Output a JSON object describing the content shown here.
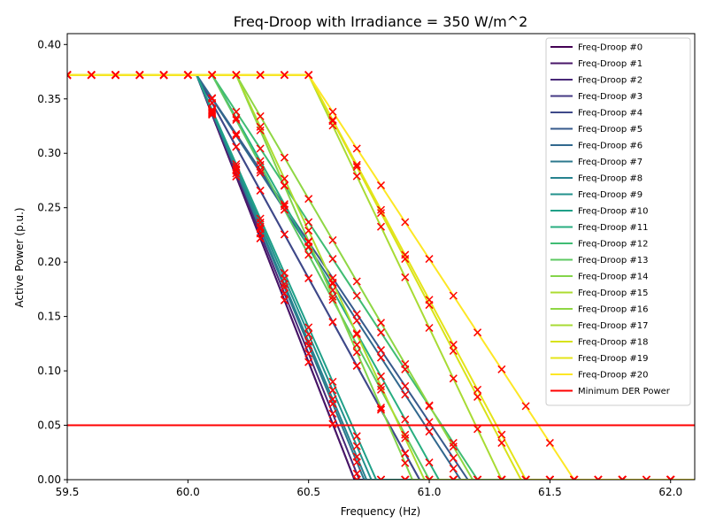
{
  "chart_data": {
    "type": "line",
    "title": "Freq-Droop with Irradiance = 350 W/m^2",
    "xlabel": "Frequency (Hz)",
    "ylabel": "Active Power (p.u.)",
    "xlim": [
      59.5,
      62.1
    ],
    "ylim": [
      0.0,
      0.41
    ],
    "xticks": [
      59.5,
      60.0,
      60.5,
      61.0,
      61.5,
      62.0
    ],
    "xtick_labels": [
      "59.5",
      "60.0",
      "60.5",
      "61.0",
      "61.5",
      "62.0"
    ],
    "yticks": [
      0.0,
      0.05,
      0.1,
      0.15,
      0.2,
      0.25,
      0.3,
      0.35,
      0.4
    ],
    "ytick_labels": [
      "0.00",
      "0.05",
      "0.10",
      "0.15",
      "0.20",
      "0.25",
      "0.30",
      "0.35",
      "0.40"
    ],
    "grid": false,
    "legend_position": "top-right",
    "p_max": 0.372,
    "min_der_power": 0.05,
    "min_der_label": "Minimum DER Power",
    "min_der_color": "#ff0000",
    "marker_color": "#ff0000",
    "series": [
      {
        "name": "Freq-Droop #0",
        "db": 60.036,
        "fz": 60.69,
        "color": "#440154"
      },
      {
        "name": "Freq-Droop #1",
        "db": 60.036,
        "fz": 60.69,
        "color": "#481668"
      },
      {
        "name": "Freq-Droop #2",
        "db": 60.036,
        "fz": 60.71,
        "color": "#482878"
      },
      {
        "name": "Freq-Droop #3",
        "db": 60.036,
        "fz": 60.96,
        "color": "#443983"
      },
      {
        "name": "Freq-Droop #4",
        "db": 60.036,
        "fz": 60.96,
        "color": "#3e4989"
      },
      {
        "name": "Freq-Droop #5",
        "db": 60.036,
        "fz": 61.16,
        "color": "#375a8c"
      },
      {
        "name": "Freq-Droop #6",
        "db": 60.036,
        "fz": 61.13,
        "color": "#31688e"
      },
      {
        "name": "Freq-Droop #7",
        "db": 60.036,
        "fz": 60.73,
        "color": "#2c788e"
      },
      {
        "name": "Freq-Droop #8",
        "db": 60.036,
        "fz": 60.74,
        "color": "#26838f"
      },
      {
        "name": "Freq-Droop #9",
        "db": 60.036,
        "fz": 60.76,
        "color": "#21918c"
      },
      {
        "name": "Freq-Droop #10",
        "db": 60.036,
        "fz": 60.78,
        "color": "#1fa088"
      },
      {
        "name": "Freq-Droop #11",
        "db": 60.1,
        "fz": 61.04,
        "color": "#28ae80"
      },
      {
        "name": "Freq-Droop #12",
        "db": 60.1,
        "fz": 61.2,
        "color": "#3fbc73"
      },
      {
        "name": "Freq-Droop #13",
        "db": 60.1,
        "fz": 61.0,
        "color": "#5ec962"
      },
      {
        "name": "Freq-Droop #14",
        "db": 60.2,
        "fz": 60.93,
        "color": "#84d44b"
      },
      {
        "name": "Freq-Droop #15",
        "db": 60.2,
        "fz": 60.98,
        "color": "#addc30"
      },
      {
        "name": "Freq-Droop #16",
        "db": 60.2,
        "fz": 61.18,
        "color": "#8fd744"
      },
      {
        "name": "Freq-Droop #17",
        "db": 60.5,
        "fz": 61.3,
        "color": "#a8db34"
      },
      {
        "name": "Freq-Droop #18",
        "db": 60.5,
        "fz": 61.38,
        "color": "#d8e219"
      },
      {
        "name": "Freq-Droop #19",
        "db": 60.5,
        "fz": 61.4,
        "color": "#e5e419"
      },
      {
        "name": "Freq-Droop #20",
        "db": 60.5,
        "fz": 61.6,
        "color": "#fde725"
      }
    ],
    "marker_freqs": [
      59.5,
      59.6,
      59.7,
      59.8,
      59.9,
      60.0,
      60.1,
      60.2,
      60.3,
      60.4,
      60.5,
      60.6,
      60.7,
      60.8,
      60.9,
      61.0,
      61.1,
      61.2,
      61.3,
      61.4,
      61.5,
      61.6,
      61.7,
      61.8,
      61.9,
      62.0
    ]
  }
}
